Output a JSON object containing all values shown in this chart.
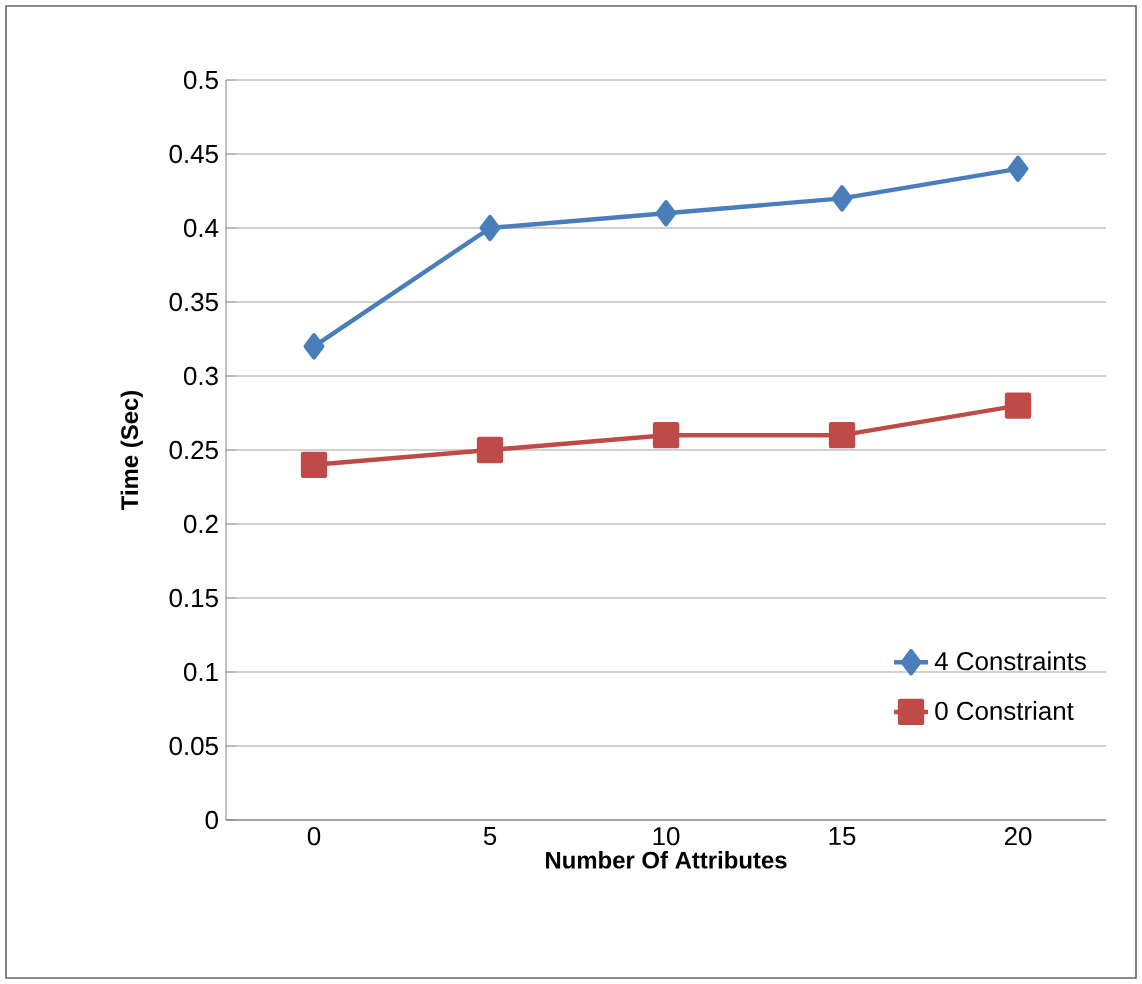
{
  "chart_data": {
    "type": "line",
    "xlabel": "Number Of Attributes",
    "ylabel": "Time (Sec)",
    "categories": [
      "0",
      "5",
      "10",
      "15",
      "20"
    ],
    "series": [
      {
        "name": "4 Constraints",
        "color": "#4a7ebb",
        "marker": "diamond",
        "values": [
          0.32,
          0.4,
          0.41,
          0.42,
          0.44
        ]
      },
      {
        "name": "0 Constriant",
        "color": "#be4b48",
        "marker": "square",
        "values": [
          0.24,
          0.25,
          0.26,
          0.26,
          0.28
        ]
      }
    ],
    "ylim": [
      0,
      0.5
    ],
    "yticks": [
      0,
      0.05,
      0.1,
      0.15,
      0.2,
      0.25,
      0.3,
      0.35,
      0.4,
      0.45,
      0.5
    ],
    "grid": "y",
    "legend": "bottom right"
  }
}
